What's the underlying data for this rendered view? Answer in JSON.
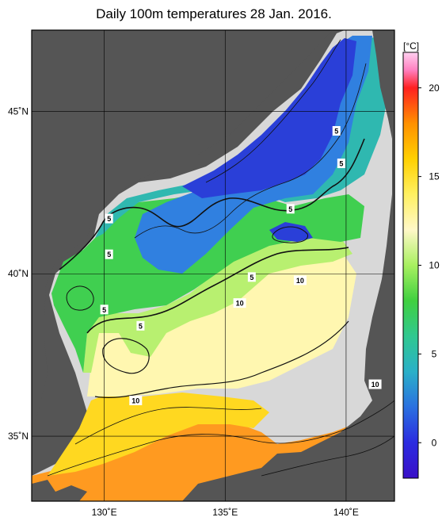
{
  "title": "Daily 100m temperatures 28 Jan. 2016.",
  "colorbar": {
    "unit": "[°C]",
    "ticks": [
      {
        "value": 0,
        "label": "0"
      },
      {
        "value": 5,
        "label": "5"
      },
      {
        "value": 10,
        "label": "10"
      },
      {
        "value": 15,
        "label": "15"
      },
      {
        "value": 20,
        "label": "20"
      }
    ],
    "range": [
      -2,
      22
    ],
    "stops": [
      {
        "v": -2,
        "color": "#3a10c8"
      },
      {
        "v": 0,
        "color": "#2b2be0"
      },
      {
        "v": 2,
        "color": "#2a70e0"
      },
      {
        "v": 4,
        "color": "#2ab0c8"
      },
      {
        "v": 6,
        "color": "#30c890"
      },
      {
        "v": 8,
        "color": "#40d040"
      },
      {
        "v": 10,
        "color": "#a8f060"
      },
      {
        "v": 12,
        "color": "#fff8c8"
      },
      {
        "v": 14,
        "color": "#fff060"
      },
      {
        "v": 16,
        "color": "#ffd000"
      },
      {
        "v": 18,
        "color": "#ff9000"
      },
      {
        "v": 20,
        "color": "#ff2020"
      },
      {
        "v": 21,
        "color": "#ff80c0"
      },
      {
        "v": 22,
        "color": "#ffd0f0"
      }
    ]
  },
  "map": {
    "lon_range": [
      127,
      142
    ],
    "lat_range": [
      33,
      47.5
    ],
    "lon_ticks": [
      {
        "value": 130,
        "label": "130˚E"
      },
      {
        "value": 135,
        "label": "135˚E"
      },
      {
        "value": 140,
        "label": "140˚E"
      }
    ],
    "lat_ticks": [
      {
        "value": 35,
        "label": "35˚N"
      },
      {
        "value": 40,
        "label": "40˚N"
      },
      {
        "value": 45,
        "label": "45˚N"
      }
    ],
    "colors": {
      "land": "#555555",
      "nodata": "#d8d8d8",
      "grid": "#000000"
    },
    "contour_labels": [
      {
        "text": "5",
        "lon": 130.2,
        "lat": 41.7
      },
      {
        "text": "5",
        "lon": 130.2,
        "lat": 40.6
      },
      {
        "text": "5",
        "lon": 130.0,
        "lat": 38.9
      },
      {
        "text": "5",
        "lon": 131.5,
        "lat": 38.4
      },
      {
        "text": "5",
        "lon": 136.1,
        "lat": 39.9
      },
      {
        "text": "5",
        "lon": 137.7,
        "lat": 42.0
      },
      {
        "text": "5",
        "lon": 139.6,
        "lat": 44.4
      },
      {
        "text": "5",
        "lon": 139.8,
        "lat": 43.4
      },
      {
        "text": "10",
        "lon": 138.1,
        "lat": 39.8
      },
      {
        "text": "10",
        "lon": 135.6,
        "lat": 39.1
      },
      {
        "text": "10",
        "lon": 131.3,
        "lat": 36.1
      },
      {
        "text": "10",
        "lon": 141.2,
        "lat": 36.6
      }
    ]
  }
}
